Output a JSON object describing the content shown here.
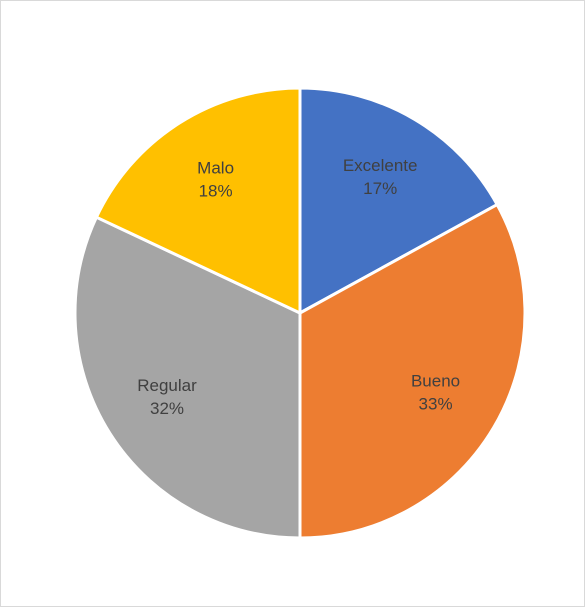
{
  "chart_data": {
    "type": "pie",
    "categories": [
      "Excelente",
      "Bueno",
      "Regular",
      "Malo"
    ],
    "values": [
      17,
      33,
      32,
      18
    ],
    "value_labels": [
      "17%",
      "33%",
      "32%",
      "18%"
    ],
    "colors": [
      "#4472c4",
      "#ed7d31",
      "#a5a5a5",
      "#ffc000"
    ]
  }
}
